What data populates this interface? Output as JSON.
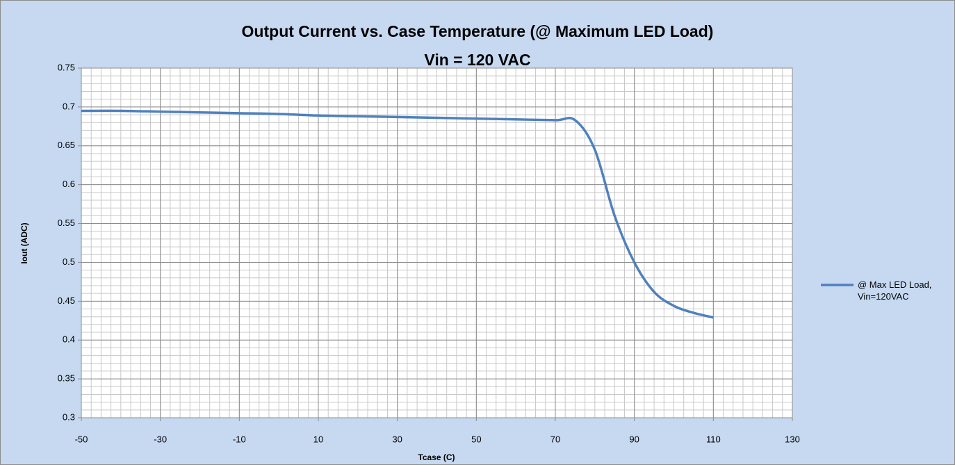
{
  "chart_data": {
    "type": "line",
    "title": "Output Current vs. Case Temperature (@ Maximum LED Load)",
    "subtitle": "Vin = 120 VAC",
    "x_label": "Tcase (C)",
    "y_label": "Iout (ADC)",
    "x": [
      -50,
      -40,
      -30,
      -20,
      -10,
      0,
      10,
      20,
      30,
      40,
      50,
      60,
      70,
      75,
      80,
      85,
      90,
      95,
      100,
      105,
      110
    ],
    "series": [
      {
        "name": "@ Max LED Load, Vin=120VAC",
        "color": "#4f81bd",
        "values": [
          0.695,
          0.695,
          0.694,
          0.693,
          0.692,
          0.691,
          0.689,
          0.688,
          0.687,
          0.686,
          0.685,
          0.684,
          0.683,
          0.683,
          0.645,
          0.56,
          0.5,
          0.462,
          0.444,
          0.435,
          0.429
        ]
      }
    ],
    "xlim": [
      -50,
      130
    ],
    "xticks": [
      -50,
      -30,
      -10,
      10,
      30,
      50,
      70,
      90,
      110,
      130
    ],
    "ylim": [
      0.3,
      0.75
    ],
    "yticks": [
      0.3,
      0.35,
      0.4,
      0.45,
      0.5,
      0.55,
      0.6,
      0.65,
      0.7,
      0.75
    ],
    "grid": true,
    "minor_grid": {
      "x": 2.5,
      "y": 0.01
    },
    "legend": "right"
  }
}
